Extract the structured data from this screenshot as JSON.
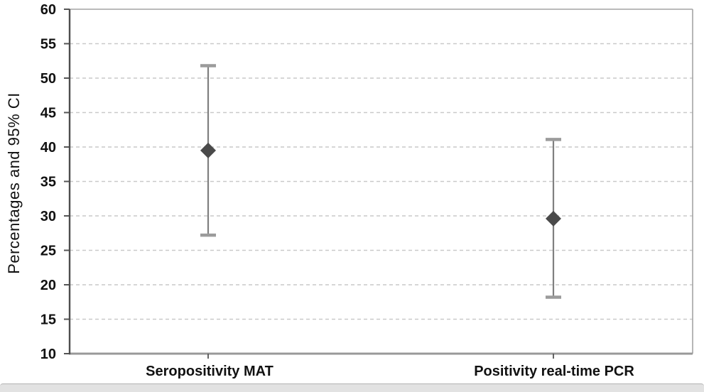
{
  "chart_data": {
    "type": "scatter",
    "subtype": "point-with-95ci-error-bars",
    "title": "",
    "ylabel": "Percentages and 95% CI",
    "xlabel": "",
    "ylim": [
      10,
      60
    ],
    "ytick_step": 5,
    "ytick_labels": [
      "60",
      "55",
      "50",
      "45",
      "40",
      "35",
      "30",
      "25",
      "20",
      "15",
      "10"
    ],
    "grid": "horizontal-dashed",
    "legend": "none",
    "marker": "diamond",
    "categories": [
      "Seropositivity MAT",
      "Positivity real-time PCR"
    ],
    "points": [
      {
        "category": "Seropositivity MAT",
        "value": 39.5,
        "ci_low": 27.2,
        "ci_high": 51.8
      },
      {
        "category": "Positivity real-time PCR",
        "value": 29.6,
        "ci_low": 18.2,
        "ci_high": 41.1
      }
    ]
  },
  "colors": {
    "marker": "#4a4a4a",
    "error_line": "#808080",
    "error_cap": "#9b9b9b",
    "grid_line": "#c9c9c9",
    "frame": "#a3a3a3",
    "bottom_axis": "#999999",
    "y_axis": "#4d4d4d",
    "tick": "#555555",
    "tick_label": "#111111",
    "bottom_bar": "#e2e2e2"
  }
}
